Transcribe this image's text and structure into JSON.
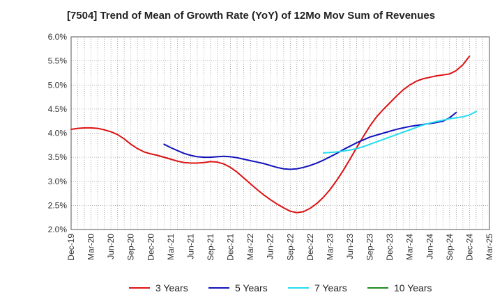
{
  "chart_data": {
    "type": "line",
    "title": "[7504]  Trend of Mean of Growth Rate (YoY) of 12Mo Mov Sum of Revenues",
    "xlabel": "",
    "ylabel": "",
    "ylim": [
      2.0,
      6.0
    ],
    "y_ticks": [
      "2.0%",
      "2.5%",
      "3.0%",
      "3.5%",
      "4.0%",
      "4.5%",
      "5.0%",
      "5.5%",
      "6.0%"
    ],
    "y_tick_values": [
      2.0,
      2.5,
      3.0,
      3.5,
      4.0,
      4.5,
      5.0,
      5.5,
      6.0
    ],
    "x_ticks": [
      "Dec-19",
      "Mar-20",
      "Jun-20",
      "Sep-20",
      "Dec-20",
      "Mar-21",
      "Jun-21",
      "Sep-21",
      "Dec-21",
      "Mar-22",
      "Jun-22",
      "Sep-22",
      "Dec-22",
      "Mar-23",
      "Jun-23",
      "Sep-23",
      "Dec-23",
      "Mar-24",
      "Jun-24",
      "Sep-24",
      "Dec-24",
      "Mar-25"
    ],
    "x_start": "Dec-19",
    "x_end": "Mar-25",
    "x_total_months": 63,
    "grid": true,
    "legend_position": "bottom",
    "series": [
      {
        "name": "3 Years",
        "color": "#dd1111",
        "start": "Dec-19",
        "values": [
          4.08,
          4.1,
          4.11,
          4.11,
          4.1,
          4.07,
          4.03,
          3.97,
          3.88,
          3.77,
          3.68,
          3.61,
          3.57,
          3.54,
          3.5,
          3.46,
          3.42,
          3.39,
          3.38,
          3.38,
          3.39,
          3.41,
          3.4,
          3.36,
          3.29,
          3.19,
          3.07,
          2.95,
          2.83,
          2.72,
          2.62,
          2.53,
          2.45,
          2.38,
          2.35,
          2.37,
          2.44,
          2.54,
          2.67,
          2.83,
          3.02,
          3.23,
          3.46,
          3.7,
          3.93,
          4.15,
          4.34,
          4.49,
          4.63,
          4.77,
          4.9,
          5.0,
          5.08,
          5.13,
          5.16,
          5.19,
          5.21,
          5.23,
          5.3,
          5.42,
          5.6
        ]
      },
      {
        "name": "5 Years",
        "color": "#1111bb",
        "start": "Feb-21",
        "values": [
          3.77,
          3.7,
          3.64,
          3.58,
          3.54,
          3.51,
          3.5,
          3.5,
          3.51,
          3.52,
          3.51,
          3.49,
          3.46,
          3.43,
          3.4,
          3.37,
          3.33,
          3.29,
          3.26,
          3.25,
          3.26,
          3.29,
          3.33,
          3.38,
          3.44,
          3.51,
          3.58,
          3.66,
          3.73,
          3.8,
          3.86,
          3.92,
          3.96,
          4.0,
          4.04,
          4.08,
          4.11,
          4.14,
          4.16,
          4.18,
          4.2,
          4.22,
          4.25,
          4.32,
          4.43
        ]
      },
      {
        "name": "7 Years",
        "color": "#22ddee",
        "start": "Feb-23",
        "values": [
          3.59,
          3.6,
          3.61,
          3.63,
          3.65,
          3.68,
          3.72,
          3.77,
          3.82,
          3.87,
          3.92,
          3.97,
          4.02,
          4.07,
          4.12,
          4.17,
          4.21,
          4.24,
          4.27,
          4.3,
          4.32,
          4.34,
          4.38,
          4.45
        ]
      },
      {
        "name": "10 Years",
        "color": "#228822",
        "start": "",
        "values": []
      }
    ]
  }
}
